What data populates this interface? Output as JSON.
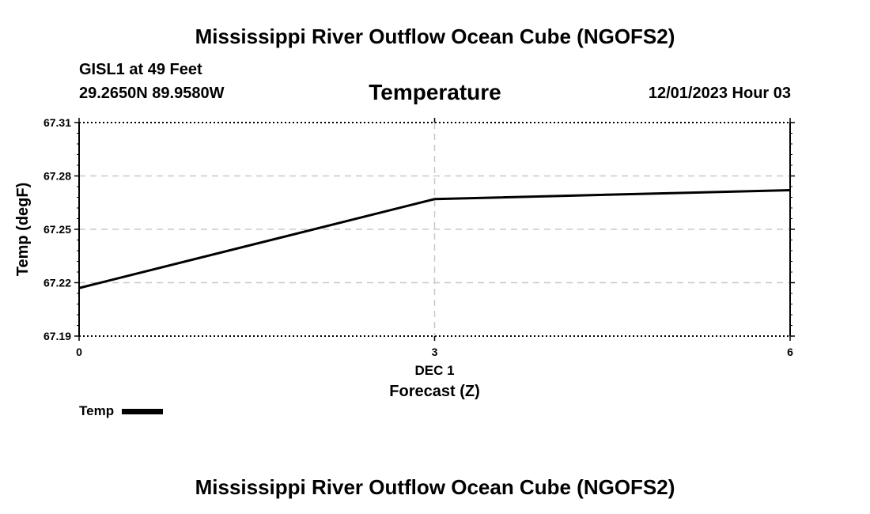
{
  "header": {
    "title": "Mississippi River Outflow Ocean Cube (NGOFS2)",
    "station": "GISL1 at 49 Feet",
    "coords": "29.2650N  89.9580W",
    "subtitle": "Temperature",
    "datetime": "12/01/2023 Hour 03"
  },
  "footer": {
    "title": "Mississippi River Outflow Ocean Cube (NGOFS2)"
  },
  "colors": {
    "line": "#000000",
    "grid": "#c8c8c8",
    "frame": "#000000"
  },
  "chart_data": {
    "type": "line",
    "title": "Temperature",
    "xlabel": "Forecast (Z)",
    "ylabel": "Temp (degF)",
    "xlim": [
      0,
      6
    ],
    "ylim": [
      67.19,
      67.31
    ],
    "xticks": [
      {
        "value": 0,
        "label": "0"
      },
      {
        "value": 3,
        "label": "3"
      },
      {
        "value": 6,
        "label": "6"
      }
    ],
    "x_date_label": {
      "value": 3,
      "label": "DEC 1"
    },
    "yticks": [
      {
        "value": 67.19,
        "label": "67.19"
      },
      {
        "value": 67.22,
        "label": "67.22"
      },
      {
        "value": 67.25,
        "label": "67.25"
      },
      {
        "value": 67.28,
        "label": "67.28"
      },
      {
        "value": 67.31,
        "label": "67.31"
      }
    ],
    "series": [
      {
        "name": "Temp",
        "x": [
          0,
          3,
          6
        ],
        "values": [
          67.217,
          67.267,
          67.272
        ]
      }
    ],
    "grid": true,
    "legend": "bottom-left"
  }
}
